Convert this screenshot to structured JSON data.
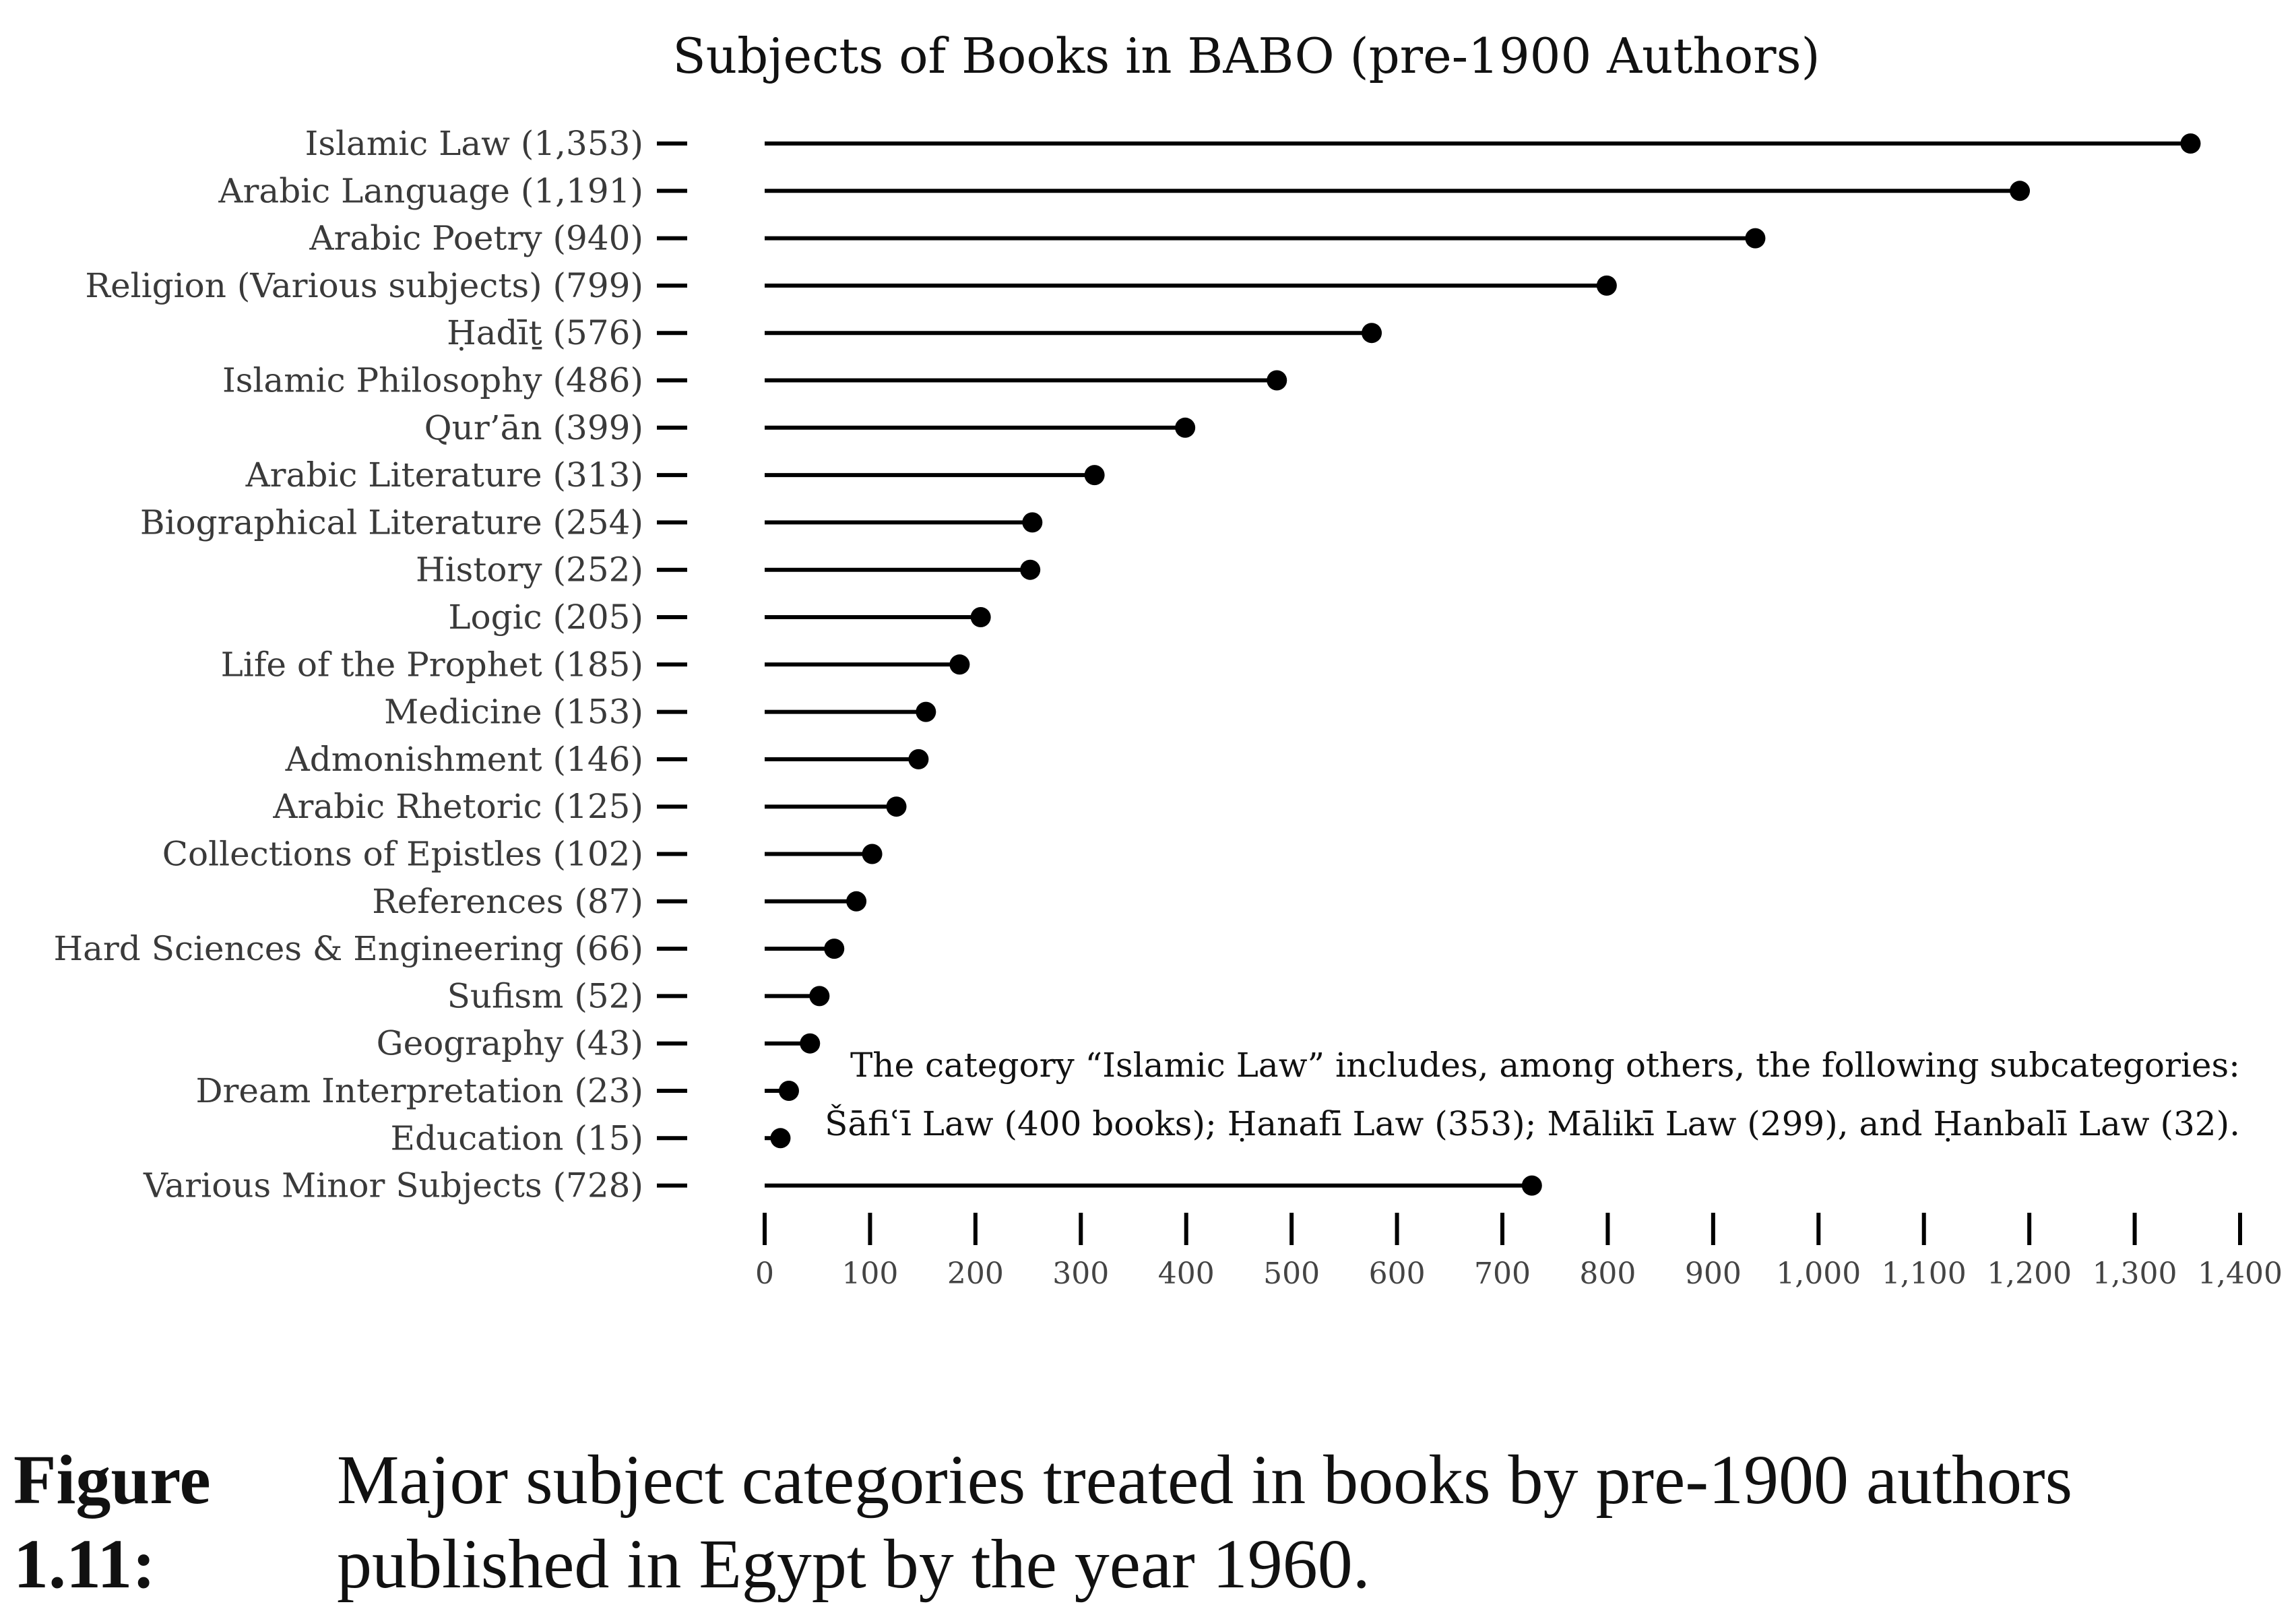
{
  "chart_data": {
    "type": "lollipop",
    "title": "Subjects of Books in BABO (pre-1900 Authors)",
    "xlabel": "",
    "ylabel": "",
    "xlim": [
      0,
      1400
    ],
    "x_ticks": [
      0,
      100,
      200,
      300,
      400,
      500,
      600,
      700,
      800,
      900,
      1000,
      1100,
      1200,
      1300,
      1400
    ],
    "x_tick_labels": [
      "0",
      "100",
      "200",
      "300",
      "400",
      "500",
      "600",
      "700",
      "800",
      "900",
      "1,000",
      "1,100",
      "1,200",
      "1,300",
      "1,400"
    ],
    "categories": [
      "Islamic Law (1,353)",
      "Arabic Language (1,191)",
      "Arabic Poetry (940)",
      "Religion (Various subjects) (799)",
      "Ḥadīṯ (576)",
      "Islamic Philosophy (486)",
      "Qur’ān (399)",
      "Arabic Literature (313)",
      "Biographical Literature (254)",
      "History (252)",
      "Logic (205)",
      "Life of the Prophet (185)",
      "Medicine (153)",
      "Admonishment (146)",
      "Arabic Rhetoric (125)",
      "Collections of Epistles (102)",
      "References (87)",
      "Hard Sciences & Engineering (66)",
      "Sufism (52)",
      "Geography (43)",
      "Dream Interpretation (23)",
      "Education (15)",
      "Various Minor Subjects (728)"
    ],
    "values": [
      1353,
      1191,
      940,
      799,
      576,
      486,
      399,
      313,
      254,
      252,
      205,
      185,
      153,
      146,
      125,
      102,
      87,
      66,
      52,
      43,
      23,
      15,
      728
    ],
    "annotations": [
      "The category “Islamic Law” includes, among others, the following subcategories:",
      "Šāfiʿī Law (400 books); Ḥanafī Law (353); Mālikī Law (299), and Ḥanbalī Law (32)."
    ],
    "grid": false
  },
  "caption": {
    "label": "Figure 1.11:",
    "text": "Major subject categories treated in books by pre-1900 authors published in Egypt by the year 1960."
  },
  "colors": {
    "ink": "#000000",
    "label": "#3a3a3a"
  }
}
